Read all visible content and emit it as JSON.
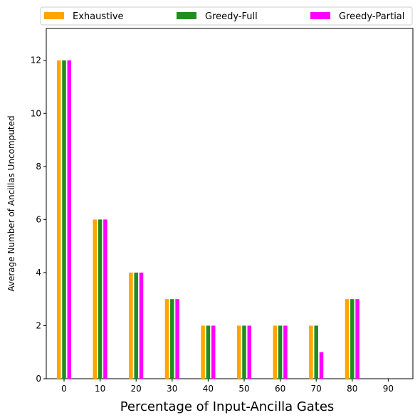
{
  "chart_data": {
    "type": "bar",
    "xlabel": "Percentage of Input-Ancilla Gates",
    "ylabel": "Average Number of Ancillas Uncomputed",
    "categories": [
      "0",
      "10",
      "20",
      "30",
      "40",
      "50",
      "60",
      "70",
      "80",
      "90"
    ],
    "series": [
      {
        "name": "Exhaustive",
        "color": "#ffa500",
        "values": [
          12,
          6,
          4,
          3,
          2,
          2,
          2,
          2,
          3,
          0
        ]
      },
      {
        "name": "Greedy-Full",
        "color": "#228b22",
        "values": [
          12,
          6,
          4,
          3,
          2,
          2,
          2,
          2,
          3,
          0
        ]
      },
      {
        "name": "Greedy-Partial",
        "color": "#ff00ff",
        "values": [
          12,
          6,
          4,
          3,
          2,
          2,
          2,
          1,
          3,
          0
        ]
      }
    ],
    "yticks": [
      0,
      2,
      4,
      6,
      8,
      10,
      12
    ],
    "ylim": [
      0,
      13.2
    ],
    "grid": false,
    "legend_position": "top"
  }
}
